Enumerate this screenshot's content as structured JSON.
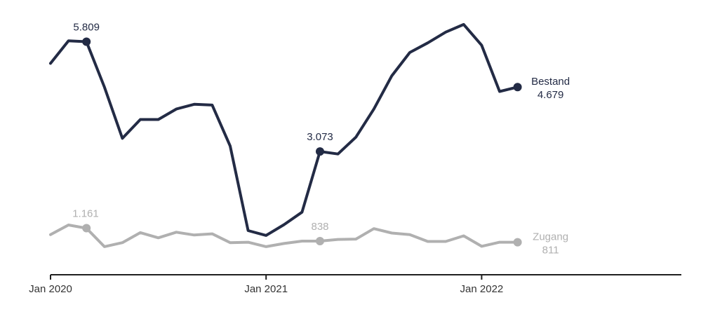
{
  "chart_data": {
    "type": "line",
    "x": [
      "2020-01",
      "2020-02",
      "2020-03",
      "2020-04",
      "2020-05",
      "2020-06",
      "2020-07",
      "2020-08",
      "2020-09",
      "2020-10",
      "2020-11",
      "2020-12",
      "2021-01",
      "2021-02",
      "2021-03",
      "2021-04",
      "2021-05",
      "2021-06",
      "2021-07",
      "2021-08",
      "2021-09",
      "2021-10",
      "2021-11",
      "2021-12",
      "2022-01",
      "2022-02",
      "2022-03"
    ],
    "x_ticks": [
      {
        "x": "2020-01",
        "label": "Jan 2020"
      },
      {
        "x": "2021-01",
        "label": "Jan 2021"
      },
      {
        "x": "2022-01",
        "label": "Jan 2022"
      }
    ],
    "x_range": [
      "2020-01",
      "2023-01"
    ],
    "ylim": [
      0,
      6500
    ],
    "grid": false,
    "series": [
      {
        "name": "Bestand",
        "color": "#232b45",
        "values": [
          5270,
          5830,
          5809,
          4680,
          3400,
          3870,
          3870,
          4130,
          4250,
          4230,
          3210,
          1100,
          980,
          1250,
          1560,
          3073,
          3010,
          3430,
          4130,
          4960,
          5540,
          5780,
          6050,
          6240,
          5720,
          4570,
          4679
        ],
        "markers": [
          {
            "x": "2020-03",
            "value": 5809,
            "label": "5.809"
          },
          {
            "x": "2021-04",
            "value": 3073,
            "label": "3.073"
          },
          {
            "x": "2022-03",
            "value": 4679,
            "label": "4.679"
          }
        ]
      },
      {
        "name": "Zugang",
        "color": "#b0b0b0",
        "values": [
          1000,
          1240,
          1161,
          700,
          800,
          1050,
          920,
          1060,
          990,
          1020,
          800,
          810,
          700,
          780,
          838,
          838,
          880,
          890,
          1150,
          1040,
          1000,
          830,
          830,
          970,
          710,
          810,
          811
        ],
        "markers": [
          {
            "x": "2020-03",
            "value": 1161,
            "label": "1.161"
          },
          {
            "x": "2021-04",
            "value": 838,
            "label": "838"
          },
          {
            "x": "2022-03",
            "value": 811,
            "label": "811"
          }
        ]
      }
    ]
  }
}
